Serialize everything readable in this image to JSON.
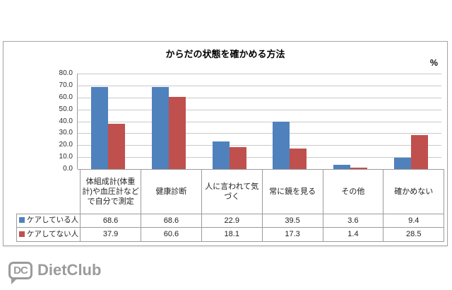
{
  "chart": {
    "title": "からだの状態を確かめる方法",
    "unit_label": "%"
  },
  "chart_data": {
    "type": "bar",
    "title": "からだの状態を確かめる方法",
    "unit": "%",
    "categories": [
      "体組成計(体重計)や血圧計などで自分で測定",
      "健康診断",
      "人に言われて気づく",
      "常に鏡を見る",
      "その他",
      "確かめない"
    ],
    "series": [
      {
        "name": "ケアしている人",
        "color": "#4f81bd",
        "values": [
          68.6,
          68.6,
          22.9,
          39.5,
          3.6,
          9.4
        ]
      },
      {
        "name": "ケアしてない人",
        "color": "#c0504d",
        "values": [
          37.9,
          60.6,
          18.1,
          17.3,
          1.4,
          28.5
        ]
      }
    ],
    "ylim": [
      0,
      80
    ],
    "ytick_step": 10,
    "ytick_labels": [
      "80.0",
      "70.0",
      "60.0",
      "50.0",
      "40.0",
      "30.0",
      "20.0",
      "10.0",
      "0.0"
    ],
    "grid": true,
    "legend_position": "table-left",
    "data_table": true
  },
  "footer": {
    "logo_icon_text": "DC",
    "logo_text": "DietClub"
  }
}
